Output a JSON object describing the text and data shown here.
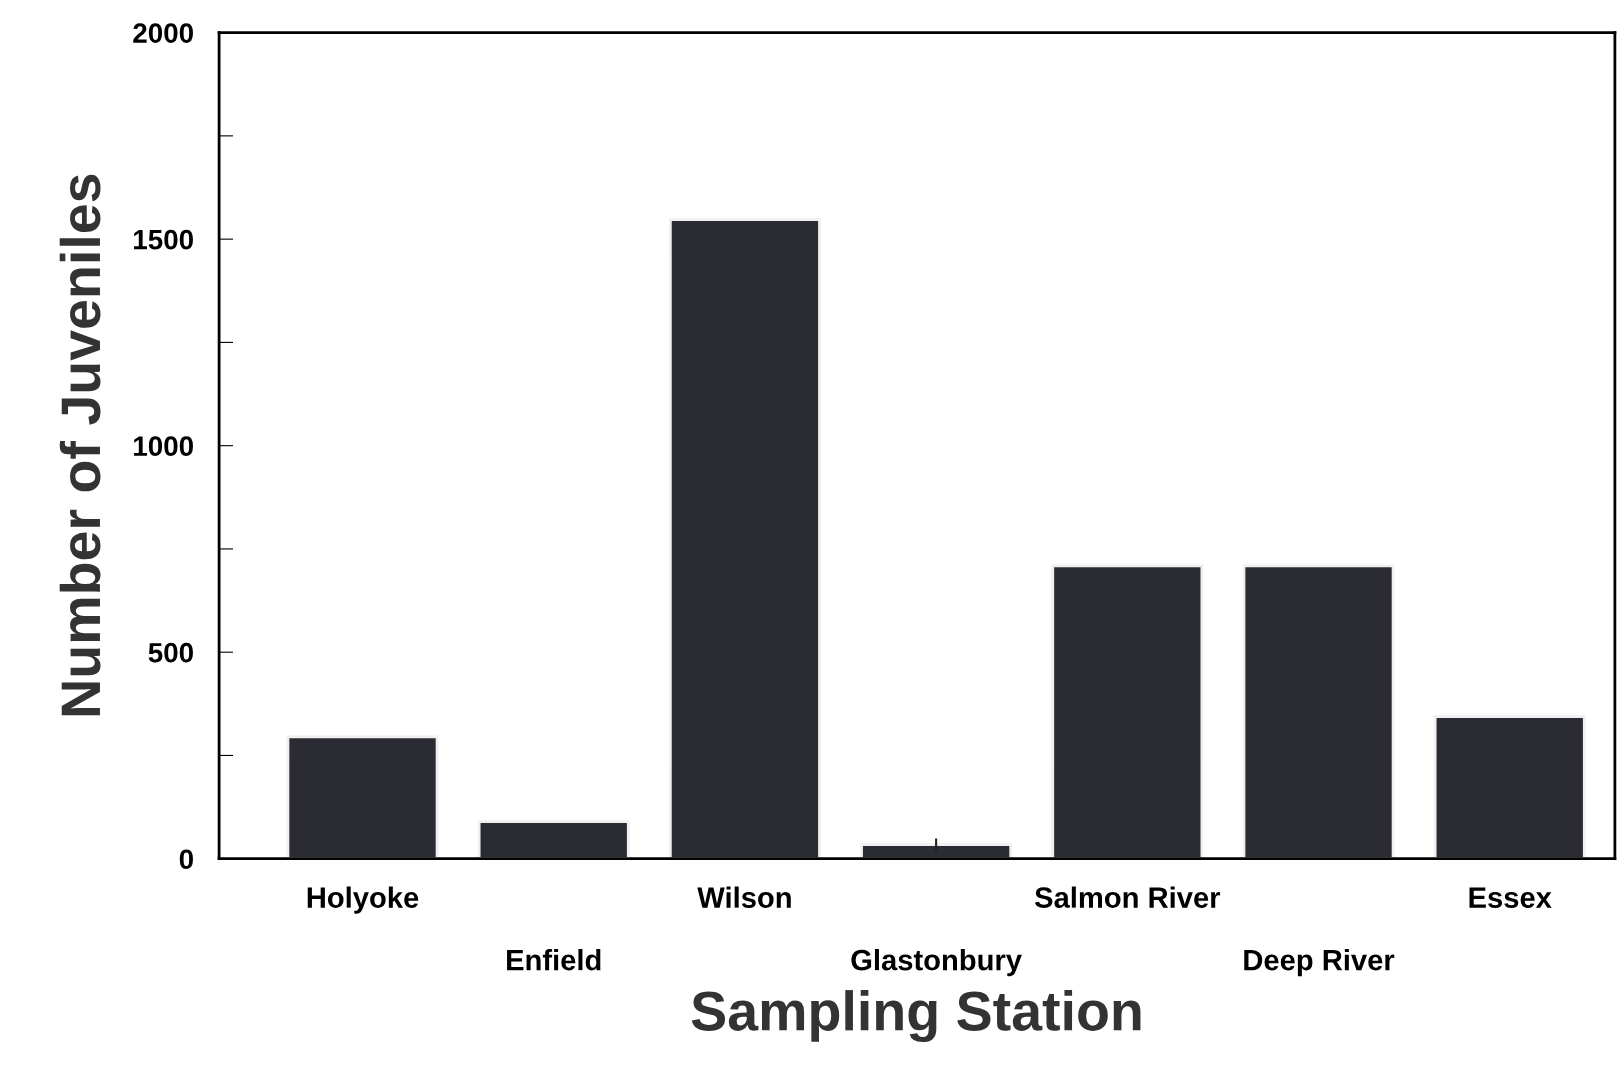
{
  "chart_data": {
    "type": "bar",
    "xlabel": "Sampling Station",
    "ylabel": "Number of Juveniles",
    "categories": [
      "Holyoke",
      "Enfield",
      "Wilson",
      "Glastonbury",
      "Salmon River",
      "Deep River",
      "Essex"
    ],
    "values": [
      295,
      90,
      1547,
      34,
      709,
      709,
      344
    ],
    "errors": [
      null,
      null,
      null,
      15,
      null,
      null,
      null
    ],
    "color": "#2b2b33",
    "ylim": [
      0,
      2000
    ],
    "yticks": [
      0,
      {
        "value": 250,
        "label": null
      },
      500,
      {
        "value": 750,
        "label": null
      },
      1000,
      {
        "value": 1250,
        "label": null
      },
      1500,
      {
        "value": 1750,
        "label": null
      },
      2000
    ],
    "grid": false
  }
}
